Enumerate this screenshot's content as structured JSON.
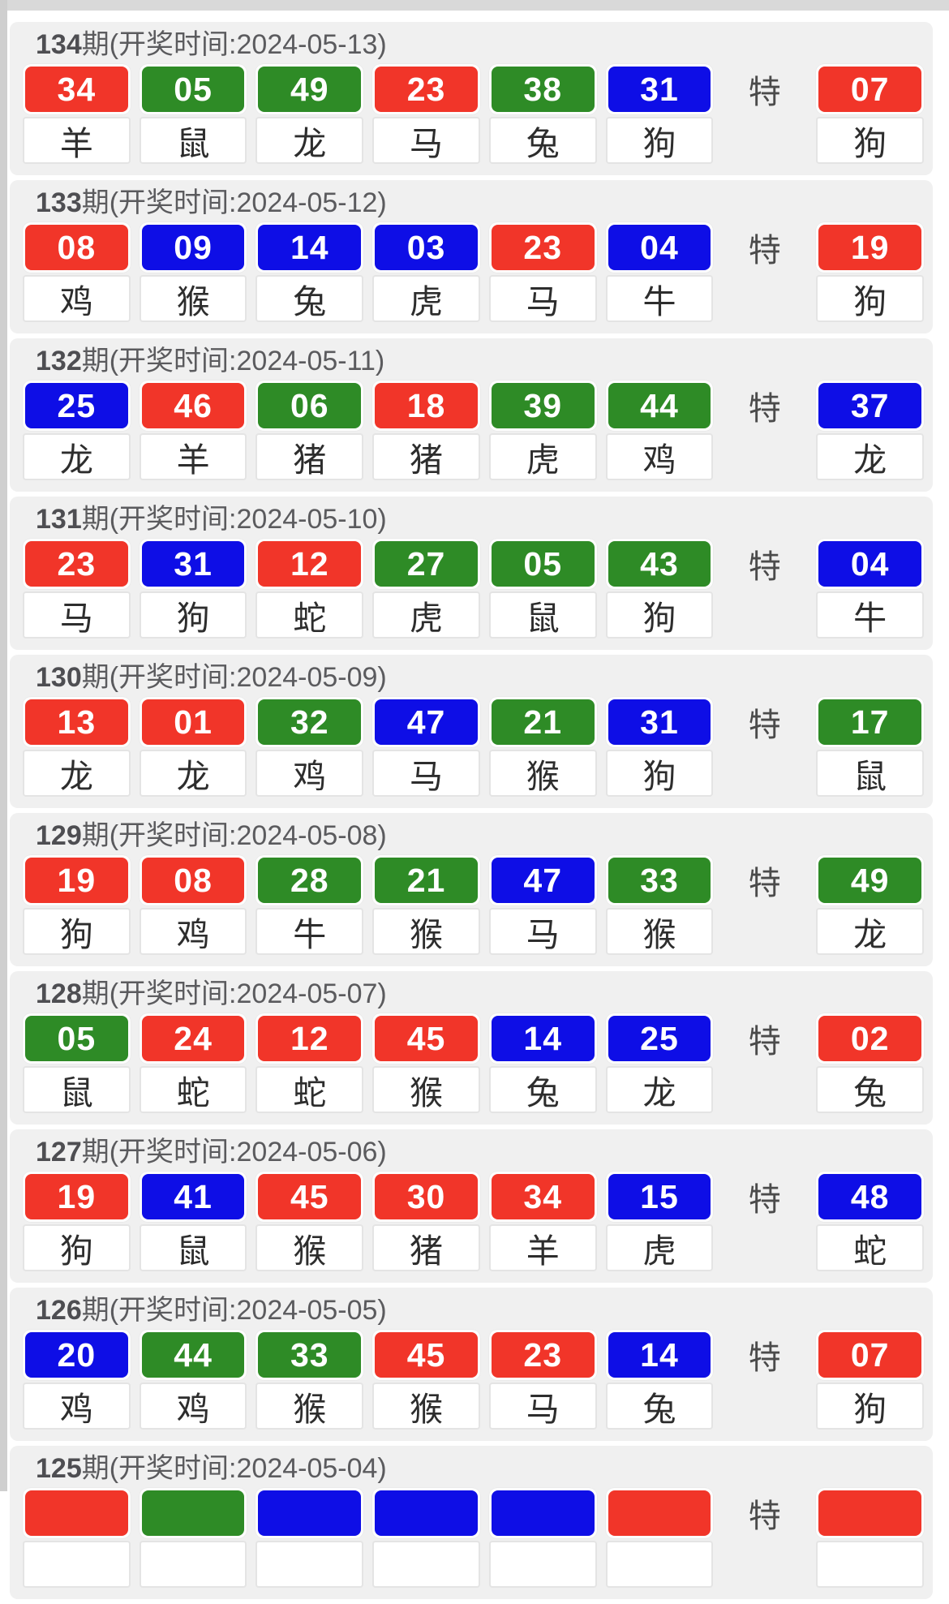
{
  "page": {
    "special_label": "特"
  },
  "colors": {
    "red": "#f13529",
    "green": "#2e8b26",
    "blue": "#0e0ee6"
  },
  "sections": [
    {
      "period": "134",
      "title_rest": "期(开奖时间:2024-05-13)",
      "balls": [
        {
          "n": "34",
          "color": "red",
          "zodiac": "羊"
        },
        {
          "n": "05",
          "color": "green",
          "zodiac": "鼠"
        },
        {
          "n": "49",
          "color": "green",
          "zodiac": "龙"
        },
        {
          "n": "23",
          "color": "red",
          "zodiac": "马"
        },
        {
          "n": "38",
          "color": "green",
          "zodiac": "兔"
        },
        {
          "n": "31",
          "color": "blue",
          "zodiac": "狗"
        }
      ],
      "special": {
        "n": "07",
        "color": "red",
        "zodiac": "狗"
      }
    },
    {
      "period": "133",
      "title_rest": "期(开奖时间:2024-05-12)",
      "balls": [
        {
          "n": "08",
          "color": "red",
          "zodiac": "鸡"
        },
        {
          "n": "09",
          "color": "blue",
          "zodiac": "猴"
        },
        {
          "n": "14",
          "color": "blue",
          "zodiac": "兔"
        },
        {
          "n": "03",
          "color": "blue",
          "zodiac": "虎"
        },
        {
          "n": "23",
          "color": "red",
          "zodiac": "马"
        },
        {
          "n": "04",
          "color": "blue",
          "zodiac": "牛"
        }
      ],
      "special": {
        "n": "19",
        "color": "red",
        "zodiac": "狗"
      }
    },
    {
      "period": "132",
      "title_rest": "期(开奖时间:2024-05-11)",
      "balls": [
        {
          "n": "25",
          "color": "blue",
          "zodiac": "龙"
        },
        {
          "n": "46",
          "color": "red",
          "zodiac": "羊"
        },
        {
          "n": "06",
          "color": "green",
          "zodiac": "猪"
        },
        {
          "n": "18",
          "color": "red",
          "zodiac": "猪"
        },
        {
          "n": "39",
          "color": "green",
          "zodiac": "虎"
        },
        {
          "n": "44",
          "color": "green",
          "zodiac": "鸡"
        }
      ],
      "special": {
        "n": "37",
        "color": "blue",
        "zodiac": "龙"
      }
    },
    {
      "period": "131",
      "title_rest": "期(开奖时间:2024-05-10)",
      "balls": [
        {
          "n": "23",
          "color": "red",
          "zodiac": "马"
        },
        {
          "n": "31",
          "color": "blue",
          "zodiac": "狗"
        },
        {
          "n": "12",
          "color": "red",
          "zodiac": "蛇"
        },
        {
          "n": "27",
          "color": "green",
          "zodiac": "虎"
        },
        {
          "n": "05",
          "color": "green",
          "zodiac": "鼠"
        },
        {
          "n": "43",
          "color": "green",
          "zodiac": "狗"
        }
      ],
      "special": {
        "n": "04",
        "color": "blue",
        "zodiac": "牛"
      }
    },
    {
      "period": "130",
      "title_rest": "期(开奖时间:2024-05-09)",
      "balls": [
        {
          "n": "13",
          "color": "red",
          "zodiac": "龙"
        },
        {
          "n": "01",
          "color": "red",
          "zodiac": "龙"
        },
        {
          "n": "32",
          "color": "green",
          "zodiac": "鸡"
        },
        {
          "n": "47",
          "color": "blue",
          "zodiac": "马"
        },
        {
          "n": "21",
          "color": "green",
          "zodiac": "猴"
        },
        {
          "n": "31",
          "color": "blue",
          "zodiac": "狗"
        }
      ],
      "special": {
        "n": "17",
        "color": "green",
        "zodiac": "鼠"
      }
    },
    {
      "period": "129",
      "title_rest": "期(开奖时间:2024-05-08)",
      "balls": [
        {
          "n": "19",
          "color": "red",
          "zodiac": "狗"
        },
        {
          "n": "08",
          "color": "red",
          "zodiac": "鸡"
        },
        {
          "n": "28",
          "color": "green",
          "zodiac": "牛"
        },
        {
          "n": "21",
          "color": "green",
          "zodiac": "猴"
        },
        {
          "n": "47",
          "color": "blue",
          "zodiac": "马"
        },
        {
          "n": "33",
          "color": "green",
          "zodiac": "猴"
        }
      ],
      "special": {
        "n": "49",
        "color": "green",
        "zodiac": "龙"
      }
    },
    {
      "period": "128",
      "title_rest": "期(开奖时间:2024-05-07)",
      "balls": [
        {
          "n": "05",
          "color": "green",
          "zodiac": "鼠"
        },
        {
          "n": "24",
          "color": "red",
          "zodiac": "蛇"
        },
        {
          "n": "12",
          "color": "red",
          "zodiac": "蛇"
        },
        {
          "n": "45",
          "color": "red",
          "zodiac": "猴"
        },
        {
          "n": "14",
          "color": "blue",
          "zodiac": "兔"
        },
        {
          "n": "25",
          "color": "blue",
          "zodiac": "龙"
        }
      ],
      "special": {
        "n": "02",
        "color": "red",
        "zodiac": "兔"
      }
    },
    {
      "period": "127",
      "title_rest": "期(开奖时间:2024-05-06)",
      "balls": [
        {
          "n": "19",
          "color": "red",
          "zodiac": "狗"
        },
        {
          "n": "41",
          "color": "blue",
          "zodiac": "鼠"
        },
        {
          "n": "45",
          "color": "red",
          "zodiac": "猴"
        },
        {
          "n": "30",
          "color": "red",
          "zodiac": "猪"
        },
        {
          "n": "34",
          "color": "red",
          "zodiac": "羊"
        },
        {
          "n": "15",
          "color": "blue",
          "zodiac": "虎"
        }
      ],
      "special": {
        "n": "48",
        "color": "blue",
        "zodiac": "蛇"
      }
    },
    {
      "period": "126",
      "title_rest": "期(开奖时间:2024-05-05)",
      "balls": [
        {
          "n": "20",
          "color": "blue",
          "zodiac": "鸡"
        },
        {
          "n": "44",
          "color": "green",
          "zodiac": "鸡"
        },
        {
          "n": "33",
          "color": "green",
          "zodiac": "猴"
        },
        {
          "n": "45",
          "color": "red",
          "zodiac": "猴"
        },
        {
          "n": "23",
          "color": "red",
          "zodiac": "马"
        },
        {
          "n": "14",
          "color": "blue",
          "zodiac": "兔"
        }
      ],
      "special": {
        "n": "07",
        "color": "red",
        "zodiac": "狗"
      }
    },
    {
      "period": "125",
      "title_rest": "期(开奖时间:2024-05-04)",
      "balls": [
        {
          "n": "",
          "color": "red",
          "zodiac": ""
        },
        {
          "n": "",
          "color": "green",
          "zodiac": ""
        },
        {
          "n": "",
          "color": "blue",
          "zodiac": ""
        },
        {
          "n": "",
          "color": "blue",
          "zodiac": ""
        },
        {
          "n": "",
          "color": "blue",
          "zodiac": ""
        },
        {
          "n": "",
          "color": "red",
          "zodiac": ""
        }
      ],
      "special": {
        "n": "",
        "color": "red",
        "zodiac": ""
      }
    }
  ]
}
